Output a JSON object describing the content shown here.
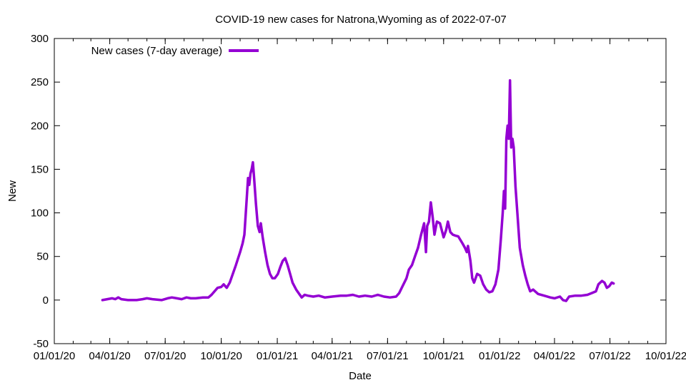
{
  "chart_data": {
    "type": "line",
    "title": "COVID-19 new cases for Natrona,Wyoming as of 2022-07-07",
    "xlabel": "Date",
    "ylabel": "New",
    "ylim": [
      -50,
      300
    ],
    "xlim": [
      "2020-01-01",
      "2022-10-01"
    ],
    "yticks": [
      -50,
      0,
      50,
      100,
      150,
      200,
      250,
      300
    ],
    "xticks": [
      {
        "date": "2020-01-01",
        "label": "01/01/20"
      },
      {
        "date": "2020-04-01",
        "label": "04/01/20"
      },
      {
        "date": "2020-07-01",
        "label": "07/01/20"
      },
      {
        "date": "2020-10-01",
        "label": "10/01/20"
      },
      {
        "date": "2021-01-01",
        "label": "01/01/21"
      },
      {
        "date": "2021-04-01",
        "label": "04/01/21"
      },
      {
        "date": "2021-07-01",
        "label": "07/01/21"
      },
      {
        "date": "2021-10-01",
        "label": "10/01/21"
      },
      {
        "date": "2022-01-01",
        "label": "01/01/22"
      },
      {
        "date": "2022-04-01",
        "label": "04/01/22"
      },
      {
        "date": "2022-07-01",
        "label": "07/01/22"
      },
      {
        "date": "2022-10-01",
        "label": "10/01/22"
      }
    ],
    "grid": false,
    "legend_position": "top-left",
    "series": [
      {
        "name": "New cases (7-day average)",
        "color": "#9400d3",
        "points": [
          [
            "2020-03-20",
            0
          ],
          [
            "2020-03-28",
            1
          ],
          [
            "2020-04-05",
            2
          ],
          [
            "2020-04-10",
            1
          ],
          [
            "2020-04-15",
            3
          ],
          [
            "2020-04-20",
            1
          ],
          [
            "2020-05-01",
            0
          ],
          [
            "2020-05-15",
            0
          ],
          [
            "2020-05-25",
            1
          ],
          [
            "2020-06-01",
            2
          ],
          [
            "2020-06-10",
            1
          ],
          [
            "2020-06-25",
            0
          ],
          [
            "2020-07-05",
            2
          ],
          [
            "2020-07-12",
            3
          ],
          [
            "2020-07-20",
            2
          ],
          [
            "2020-07-28",
            1
          ],
          [
            "2020-08-05",
            3
          ],
          [
            "2020-08-12",
            2
          ],
          [
            "2020-08-20",
            2
          ],
          [
            "2020-09-01",
            3
          ],
          [
            "2020-09-10",
            3
          ],
          [
            "2020-09-15",
            6
          ],
          [
            "2020-09-20",
            10
          ],
          [
            "2020-09-25",
            14
          ],
          [
            "2020-10-01",
            15
          ],
          [
            "2020-10-05",
            18
          ],
          [
            "2020-10-10",
            14
          ],
          [
            "2020-10-15",
            20
          ],
          [
            "2020-10-20",
            30
          ],
          [
            "2020-10-25",
            40
          ],
          [
            "2020-11-01",
            55
          ],
          [
            "2020-11-05",
            65
          ],
          [
            "2020-11-08",
            75
          ],
          [
            "2020-11-12",
            118
          ],
          [
            "2020-11-14",
            140
          ],
          [
            "2020-11-16",
            132
          ],
          [
            "2020-11-18",
            145
          ],
          [
            "2020-11-20",
            150
          ],
          [
            "2020-11-22",
            158
          ],
          [
            "2020-11-24",
            140
          ],
          [
            "2020-11-27",
            110
          ],
          [
            "2020-11-30",
            85
          ],
          [
            "2020-12-03",
            78
          ],
          [
            "2020-12-05",
            88
          ],
          [
            "2020-12-08",
            72
          ],
          [
            "2020-12-12",
            55
          ],
          [
            "2020-12-16",
            40
          ],
          [
            "2020-12-20",
            30
          ],
          [
            "2020-12-24",
            25
          ],
          [
            "2020-12-28",
            25
          ],
          [
            "2021-01-02",
            30
          ],
          [
            "2021-01-06",
            38
          ],
          [
            "2021-01-10",
            45
          ],
          [
            "2021-01-14",
            48
          ],
          [
            "2021-01-18",
            40
          ],
          [
            "2021-01-22",
            30
          ],
          [
            "2021-01-26",
            20
          ],
          [
            "2021-02-01",
            12
          ],
          [
            "2021-02-06",
            7
          ],
          [
            "2021-02-10",
            3
          ],
          [
            "2021-02-15",
            6
          ],
          [
            "2021-02-20",
            5
          ],
          [
            "2021-03-01",
            4
          ],
          [
            "2021-03-10",
            5
          ],
          [
            "2021-03-20",
            3
          ],
          [
            "2021-04-01",
            4
          ],
          [
            "2021-04-15",
            5
          ],
          [
            "2021-04-25",
            5
          ],
          [
            "2021-05-05",
            6
          ],
          [
            "2021-05-15",
            4
          ],
          [
            "2021-05-25",
            5
          ],
          [
            "2021-06-05",
            4
          ],
          [
            "2021-06-15",
            6
          ],
          [
            "2021-06-25",
            4
          ],
          [
            "2021-07-05",
            3
          ],
          [
            "2021-07-15",
            4
          ],
          [
            "2021-07-20",
            8
          ],
          [
            "2021-07-25",
            15
          ],
          [
            "2021-08-01",
            25
          ],
          [
            "2021-08-05",
            35
          ],
          [
            "2021-08-10",
            40
          ],
          [
            "2021-08-15",
            50
          ],
          [
            "2021-08-20",
            60
          ],
          [
            "2021-08-25",
            75
          ],
          [
            "2021-08-30",
            88
          ],
          [
            "2021-09-02",
            55
          ],
          [
            "2021-09-04",
            85
          ],
          [
            "2021-09-07",
            90
          ],
          [
            "2021-09-10",
            112
          ],
          [
            "2021-09-13",
            95
          ],
          [
            "2021-09-16",
            75
          ],
          [
            "2021-09-20",
            90
          ],
          [
            "2021-09-25",
            88
          ],
          [
            "2021-10-01",
            72
          ],
          [
            "2021-10-05",
            80
          ],
          [
            "2021-10-08",
            90
          ],
          [
            "2021-10-12",
            78
          ],
          [
            "2021-10-16",
            75
          ],
          [
            "2021-10-20",
            74
          ],
          [
            "2021-10-25",
            73
          ],
          [
            "2021-11-01",
            65
          ],
          [
            "2021-11-05",
            60
          ],
          [
            "2021-11-08",
            55
          ],
          [
            "2021-11-10",
            62
          ],
          [
            "2021-11-14",
            45
          ],
          [
            "2021-11-17",
            25
          ],
          [
            "2021-11-20",
            20
          ],
          [
            "2021-11-25",
            30
          ],
          [
            "2021-11-30",
            28
          ],
          [
            "2021-12-05",
            18
          ],
          [
            "2021-12-10",
            12
          ],
          [
            "2021-12-15",
            9
          ],
          [
            "2021-12-20",
            10
          ],
          [
            "2021-12-25",
            18
          ],
          [
            "2021-12-30",
            35
          ],
          [
            "2022-01-03",
            70
          ],
          [
            "2022-01-06",
            100
          ],
          [
            "2022-01-08",
            125
          ],
          [
            "2022-01-10",
            105
          ],
          [
            "2022-01-12",
            185
          ],
          [
            "2022-01-14",
            200
          ],
          [
            "2022-01-16",
            185
          ],
          [
            "2022-01-18",
            252
          ],
          [
            "2022-01-20",
            175
          ],
          [
            "2022-01-22",
            185
          ],
          [
            "2022-01-24",
            175
          ],
          [
            "2022-01-27",
            130
          ],
          [
            "2022-01-30",
            100
          ],
          [
            "2022-02-03",
            60
          ],
          [
            "2022-02-08",
            40
          ],
          [
            "2022-02-12",
            28
          ],
          [
            "2022-02-16",
            18
          ],
          [
            "2022-02-20",
            10
          ],
          [
            "2022-02-25",
            12
          ],
          [
            "2022-03-05",
            7
          ],
          [
            "2022-03-15",
            5
          ],
          [
            "2022-03-25",
            3
          ],
          [
            "2022-04-01",
            2
          ],
          [
            "2022-04-10",
            4
          ],
          [
            "2022-04-15",
            0
          ],
          [
            "2022-04-20",
            -1
          ],
          [
            "2022-04-25",
            4
          ],
          [
            "2022-05-05",
            5
          ],
          [
            "2022-05-15",
            5
          ],
          [
            "2022-05-25",
            6
          ],
          [
            "2022-06-01",
            8
          ],
          [
            "2022-06-08",
            10
          ],
          [
            "2022-06-12",
            18
          ],
          [
            "2022-06-18",
            22
          ],
          [
            "2022-06-22",
            20
          ],
          [
            "2022-06-26",
            14
          ],
          [
            "2022-06-30",
            16
          ],
          [
            "2022-07-04",
            20
          ],
          [
            "2022-07-07",
            19
          ]
        ]
      }
    ]
  }
}
